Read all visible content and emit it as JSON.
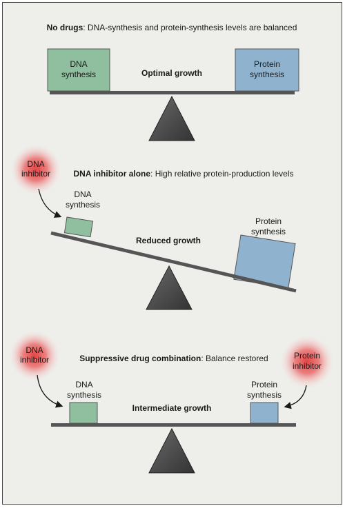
{
  "colors": {
    "background": "#eeeeea",
    "dna_box": "#8fbf9f",
    "protein_box": "#8fb3cf",
    "beam": "#555555",
    "fulcrum": "#4a4a4a",
    "inhibitor_glow": "#e23b3b"
  },
  "panels": [
    {
      "heading_bold": "No drugs",
      "heading_rest": ": DNA-synthesis and protein-synthesis levels are balanced",
      "dna_label_1": "DNA",
      "dna_label_2": "synthesis",
      "protein_label_1": "Protein",
      "protein_label_2": "synthesis",
      "center_label": "Optimal growth"
    },
    {
      "heading_bold": "DNA inhibitor alone",
      "heading_rest": ": High relative protein-production levels",
      "inhibitor_1": "DNA",
      "inhibitor_2": "inhibitor",
      "dna_label_1": "DNA",
      "dna_label_2": "synthesis",
      "protein_label_1": "Protein",
      "protein_label_2": "synthesis",
      "center_label": "Reduced growth"
    },
    {
      "heading_bold": "Suppressive drug combination",
      "heading_rest": ": Balance restored",
      "inhibitor_left_1": "DNA",
      "inhibitor_left_2": "inhibitor",
      "inhibitor_right_1": "Protein",
      "inhibitor_right_2": "inhibitor",
      "dna_label_1": "DNA",
      "dna_label_2": "synthesis",
      "protein_label_1": "Protein",
      "protein_label_2": "synthesis",
      "center_label": "Intermediate growth"
    }
  ]
}
